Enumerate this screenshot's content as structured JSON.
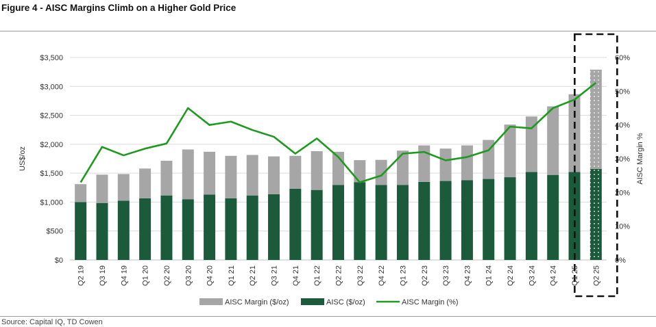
{
  "figure": {
    "title": "Figure 4 - AISC Margins Climb on a Higher Gold Price",
    "source": "Source: Capital IQ, TD Cowen"
  },
  "colors": {
    "margin_bar": "#a6a6a6",
    "aisc_bar": "#1c5a3c",
    "margin_line": "#1e9a1e",
    "grid": "#d9d9d9"
  },
  "chart_data": {
    "type": "bar",
    "stacked": true,
    "categories": [
      "Q2 19",
      "Q3 19",
      "Q4 19",
      "Q1 20",
      "Q2 20",
      "Q3 20",
      "Q4 20",
      "Q1 21",
      "Q2 21",
      "Q3 21",
      "Q4 21",
      "Q1 22",
      "Q2 22",
      "Q3 22",
      "Q4 22",
      "Q1 23",
      "Q2 23",
      "Q3 23",
      "Q4 23",
      "Q1 24",
      "Q2 24",
      "Q3 24",
      "Q4 24",
      "Q1 25",
      "Q2 25"
    ],
    "series": [
      {
        "name": "AISC ($/oz)",
        "type": "bar",
        "axis": "left",
        "values": [
          1000,
          985,
          1025,
          1065,
          1115,
          1050,
          1130,
          1065,
          1115,
          1135,
          1230,
          1210,
          1295,
          1345,
          1295,
          1295,
          1350,
          1365,
          1380,
          1400,
          1430,
          1520,
          1470,
          1520,
          1575
        ]
      },
      {
        "name": "AISC Margin ($/oz)",
        "type": "bar",
        "axis": "left",
        "values": [
          310,
          490,
          460,
          515,
          600,
          860,
          740,
          735,
          700,
          655,
          570,
          670,
          575,
          380,
          435,
          595,
          630,
          560,
          600,
          675,
          910,
          960,
          1185,
          1345,
          1715
        ]
      },
      {
        "name": "AISC Margin (%)",
        "type": "line",
        "axis": "right",
        "values": [
          23,
          33.5,
          31,
          33,
          34.5,
          45,
          40,
          41,
          38.5,
          36.5,
          31.5,
          36,
          30.5,
          23,
          25,
          31.5,
          32,
          29.5,
          30.5,
          32.5,
          39.5,
          39,
          45,
          47.5,
          52.5
        ]
      }
    ],
    "ylabel": "US$/oz",
    "ylim": [
      0,
      3500
    ],
    "yticks": [
      "$0",
      "$500",
      "$1,000",
      "$1,500",
      "$2,000",
      "$2,500",
      "$3,000",
      "$3,500"
    ],
    "y2label": "AISC Margin %",
    "y2lim": [
      0,
      60
    ],
    "y2ticks": [
      "0%",
      "10%",
      "20%",
      "30%",
      "40%",
      "50%",
      "60%"
    ],
    "grid": true,
    "highlighted_category": "Q2 25",
    "legend_position": "bottom"
  }
}
